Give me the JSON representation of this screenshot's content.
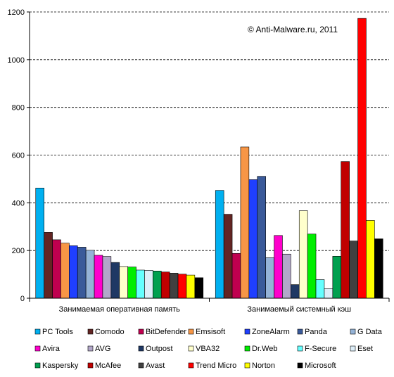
{
  "chart_data": {
    "type": "bar",
    "annotation": "© Anti-Malware.ru,  2011",
    "categories": [
      "Занимаемая оперативная память",
      "Занимаемый системный кэш"
    ],
    "ylim": [
      0,
      1200
    ],
    "yticks": [
      0,
      200,
      400,
      600,
      800,
      1000,
      1200
    ],
    "grid": true,
    "legend_position": "bottom",
    "series": [
      {
        "name": "PC Tools",
        "color": "#00b0f0",
        "values": [
          462,
          452
        ]
      },
      {
        "name": "Comodo",
        "color": "#632523",
        "values": [
          276,
          352
        ]
      },
      {
        "name": "BitDefender",
        "color": "#c0004f",
        "values": [
          245,
          188
        ]
      },
      {
        "name": "Emsisoft",
        "color": "#f79646",
        "values": [
          231,
          634
        ]
      },
      {
        "name": "ZoneAlarm",
        "color": "#1f3fff",
        "values": [
          220,
          497
        ]
      },
      {
        "name": "Panda",
        "color": "#3a5a9a",
        "values": [
          214,
          511
        ]
      },
      {
        "name": "G Data",
        "color": "#95b3d7",
        "values": [
          201,
          170
        ]
      },
      {
        "name": "Avira",
        "color": "#ff00cc",
        "values": [
          180,
          263
        ]
      },
      {
        "name": "AVG",
        "color": "#b2a7c9",
        "values": [
          175,
          185
        ]
      },
      {
        "name": "Outpost",
        "color": "#1f3864",
        "values": [
          150,
          57
        ]
      },
      {
        "name": "VBA32",
        "color": "#ffffcc",
        "values": [
          133,
          367
        ]
      },
      {
        "name": "Dr.Web",
        "color": "#00ee00",
        "values": [
          131,
          269
        ]
      },
      {
        "name": "F-Secure",
        "color": "#66ffff",
        "values": [
          118,
          78
        ]
      },
      {
        "name": "Eset",
        "color": "#ddeef8",
        "values": [
          117,
          40
        ]
      },
      {
        "name": "Kaspersky",
        "color": "#00a050",
        "values": [
          114,
          176
        ]
      },
      {
        "name": "McAfee",
        "color": "#c00000",
        "values": [
          110,
          573
        ]
      },
      {
        "name": "Avast",
        "color": "#404040",
        "values": [
          105,
          240
        ]
      },
      {
        "name": "Trend Micro",
        "color": "#ff0000",
        "values": [
          101,
          1173
        ]
      },
      {
        "name": "Norton",
        "color": "#ffff00",
        "values": [
          97,
          326
        ]
      },
      {
        "name": "Microsoft",
        "color": "#000000",
        "values": [
          86,
          249
        ]
      }
    ]
  }
}
